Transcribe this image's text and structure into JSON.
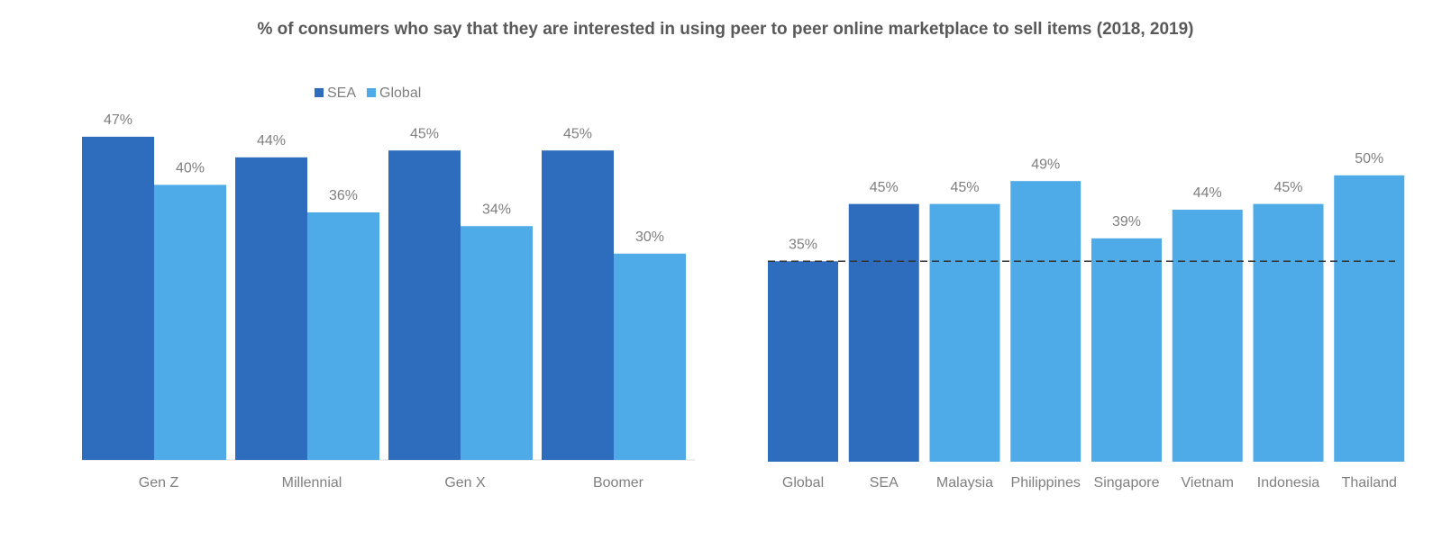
{
  "title": "% of consumers who say that they are interested in using peer to peer online marketplace to sell items (2018, 2019)",
  "chart_data": [
    {
      "type": "grouped_bar",
      "categories": [
        "Gen Z",
        "Millennial",
        "Gen X",
        "Boomer"
      ],
      "series": [
        {
          "name": "SEA",
          "color": "#2e6dbd",
          "values": [
            47,
            44,
            45,
            45
          ],
          "value_labels": [
            "47%",
            "44%",
            "45%",
            "45%"
          ]
        },
        {
          "name": "Global",
          "color": "#4eabe8",
          "values": [
            40,
            36,
            34,
            30
          ],
          "value_labels": [
            "40%",
            "36%",
            "34%",
            "30%"
          ]
        }
      ],
      "ylim": [
        0,
        50
      ],
      "legend": "top"
    },
    {
      "type": "bar",
      "categories": [
        "Global",
        "SEA",
        "Malaysia",
        "Philippines",
        "Singapore",
        "Vietnam",
        "Indonesia",
        "Thailand"
      ],
      "values": [
        35,
        45,
        45,
        49,
        39,
        44,
        45,
        50
      ],
      "value_labels": [
        "35%",
        "45%",
        "45%",
        "49%",
        "39%",
        "44%",
        "45%",
        "50%"
      ],
      "colors": [
        "#2e6dbd",
        "#2e6dbd",
        "#4eabe8",
        "#4eabe8",
        "#4eabe8",
        "#4eabe8",
        "#4eabe8",
        "#4eabe8"
      ],
      "ylim": [
        0,
        55
      ],
      "reference_line_from": 0
    }
  ]
}
